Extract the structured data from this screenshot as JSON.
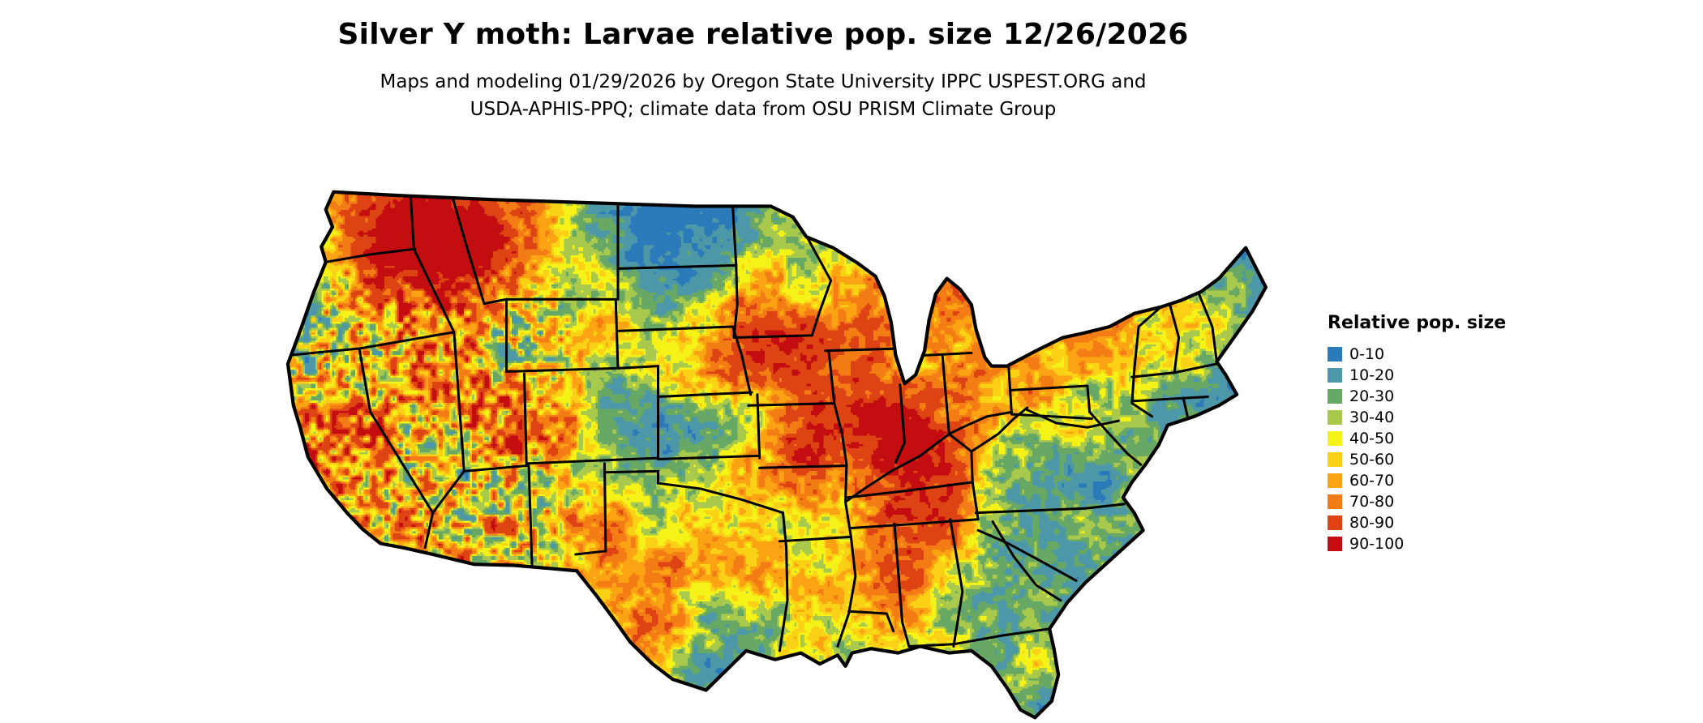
{
  "header": {
    "title": "Silver Y moth: Larvae relative pop. size 12/26/2026",
    "subtitle_line1": "Maps and modeling 01/29/2026 by Oregon State University IPPC USPEST.ORG and",
    "subtitle_line2": "USDA-APHIS-PPQ; climate data from OSU PRISM Climate Group"
  },
  "map": {
    "region": "contiguous United States",
    "style": "classified raster",
    "border_color": "#000000",
    "background_color": "#ffffff"
  },
  "legend": {
    "title": "Relative pop. size",
    "items": [
      {
        "label": "0-10",
        "color": "#2b7bba"
      },
      {
        "label": "10-20",
        "color": "#4d98a8"
      },
      {
        "label": "20-30",
        "color": "#67a865"
      },
      {
        "label": "30-40",
        "color": "#a9c94c"
      },
      {
        "label": "40-50",
        "color": "#f5f218"
      },
      {
        "label": "50-60",
        "color": "#fbd116"
      },
      {
        "label": "60-70",
        "color": "#fba313"
      },
      {
        "label": "70-80",
        "color": "#f47c14"
      },
      {
        "label": "80-90",
        "color": "#de4313"
      },
      {
        "label": "90-100",
        "color": "#c40d11"
      }
    ]
  }
}
